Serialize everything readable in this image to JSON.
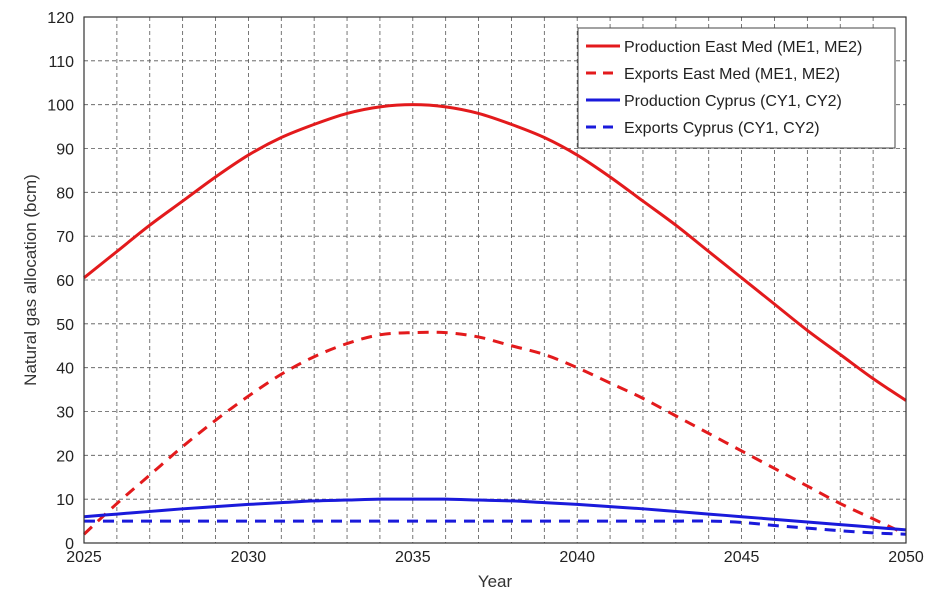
{
  "chart_data": {
    "type": "line",
    "title": "",
    "xlabel": "Year",
    "ylabel": "Natural gas allocation (bcm)",
    "xlim": [
      2025,
      2050
    ],
    "ylim": [
      0,
      120
    ],
    "x_ticks": [
      2025,
      2030,
      2035,
      2040,
      2045,
      2050
    ],
    "x_tick_labels": [
      "2025",
      "2030",
      "2035",
      "2040",
      "2045",
      "2050"
    ],
    "y_ticks": [
      0,
      10,
      20,
      30,
      40,
      50,
      60,
      70,
      80,
      90,
      100,
      110,
      120
    ],
    "y_tick_labels": [
      "0",
      "10",
      "20",
      "30",
      "40",
      "50",
      "60",
      "70",
      "80",
      "90",
      "100",
      "110",
      "120"
    ],
    "grid": true,
    "legend_position": "top-right",
    "series": [
      {
        "name": "Production East Med (ME1, ME2)",
        "color": "#e31a1c",
        "style": "solid",
        "x": [
          2025,
          2026,
          2027,
          2028,
          2029,
          2030,
          2031,
          2032,
          2033,
          2034,
          2035,
          2036,
          2037,
          2038,
          2039,
          2040,
          2041,
          2042,
          2043,
          2044,
          2045,
          2046,
          2047,
          2048,
          2049,
          2050
        ],
        "y": [
          60.5,
          66.5,
          72.5,
          78,
          83.5,
          88.5,
          92.5,
          95.5,
          98,
          99.5,
          100,
          99.5,
          98,
          95.5,
          92.5,
          88.5,
          83.5,
          78,
          72.5,
          66.5,
          60.5,
          54.5,
          48.5,
          43,
          37.5,
          32.5
        ]
      },
      {
        "name": "Exports East Med (ME1, ME2)",
        "color": "#e31a1c",
        "style": "dashed",
        "x": [
          2025,
          2026,
          2027,
          2028,
          2029,
          2030,
          2031,
          2032,
          2033,
          2034,
          2035,
          2036,
          2037,
          2038,
          2039,
          2040,
          2041,
          2042,
          2043,
          2044,
          2045,
          2046,
          2047,
          2048,
          2049,
          2050
        ],
        "y": [
          2,
          9,
          15.5,
          22,
          28,
          33.5,
          38.5,
          42.5,
          45.5,
          47.5,
          48,
          48,
          47,
          45,
          43,
          40,
          36.5,
          33,
          29,
          25,
          21,
          17,
          13,
          9,
          5.5,
          2
        ]
      },
      {
        "name": "Production Cyprus (CY1, CY2)",
        "color": "#1a1adb",
        "style": "solid",
        "x": [
          2025,
          2026,
          2027,
          2028,
          2029,
          2030,
          2031,
          2032,
          2033,
          2034,
          2035,
          2036,
          2037,
          2038,
          2039,
          2040,
          2041,
          2042,
          2043,
          2044,
          2045,
          2046,
          2047,
          2048,
          2049,
          2050
        ],
        "y": [
          6,
          6.6,
          7.2,
          7.8,
          8.3,
          8.8,
          9.2,
          9.6,
          9.8,
          10,
          10,
          10,
          9.8,
          9.6,
          9.2,
          8.8,
          8.3,
          7.8,
          7.2,
          6.6,
          6,
          5.4,
          4.8,
          4.2,
          3.6,
          3
        ]
      },
      {
        "name": "Exports Cyprus (CY1, CY2)",
        "color": "#1a1adb",
        "style": "dashed",
        "x": [
          2025,
          2026,
          2027,
          2028,
          2029,
          2030,
          2031,
          2032,
          2033,
          2034,
          2035,
          2036,
          2037,
          2038,
          2039,
          2040,
          2041,
          2042,
          2043,
          2044,
          2045,
          2046,
          2047,
          2048,
          2049,
          2050
        ],
        "y": [
          5,
          5,
          5,
          5,
          5,
          5,
          5,
          5,
          5,
          5,
          5,
          5,
          5,
          5,
          5,
          5,
          5,
          5,
          5,
          5,
          4.7,
          4,
          3.4,
          2.8,
          2.3,
          2
        ]
      }
    ]
  }
}
